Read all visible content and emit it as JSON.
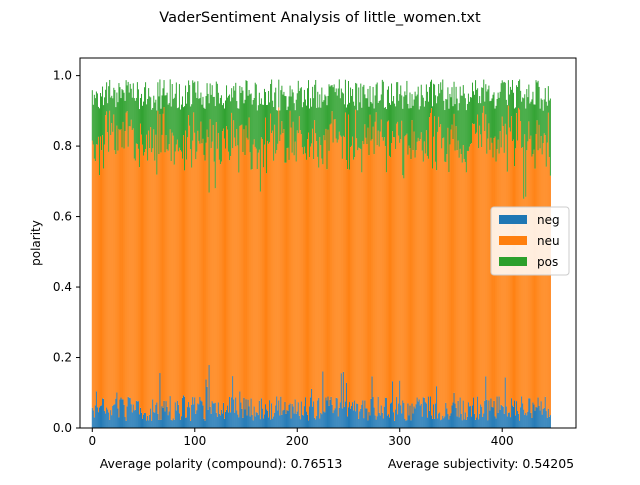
{
  "chart_data": {
    "type": "bar",
    "stacked": true,
    "title": "VaderSentiment Analysis of little_women.txt",
    "xlabel": "",
    "ylabel": "polarity",
    "xlim": [
      -12,
      472
    ],
    "ylim": [
      0,
      1.05
    ],
    "x_ticks": [
      0,
      100,
      200,
      300,
      400
    ],
    "y_ticks": [
      0.0,
      0.2,
      0.4,
      0.6,
      0.8,
      1.0
    ],
    "x_tick_labels": [
      "0",
      "100",
      "200",
      "300",
      "400"
    ],
    "y_tick_labels": [
      "0.0",
      "0.2",
      "0.4",
      "0.6",
      "0.8",
      "1.0"
    ],
    "grid": false,
    "legend_position": "center-right",
    "n_sentences": 448,
    "series": [
      {
        "name": "neg",
        "color": "#1f77b4",
        "typical_range": [
          0.0,
          0.22
        ],
        "mean": 0.05
      },
      {
        "name": "neu",
        "color": "#ff7f0e",
        "typical_range": [
          0.55,
          0.85
        ],
        "mean": 0.74
      },
      {
        "name": "pos",
        "color": "#2ca02c",
        "typical_range": [
          0.05,
          0.3
        ],
        "mean": 0.15
      }
    ],
    "annotations": {
      "avg_polarity": "Average polarity (compound): 0.76513",
      "avg_subjectivity": "Average subjectivity: 0.54205"
    }
  }
}
